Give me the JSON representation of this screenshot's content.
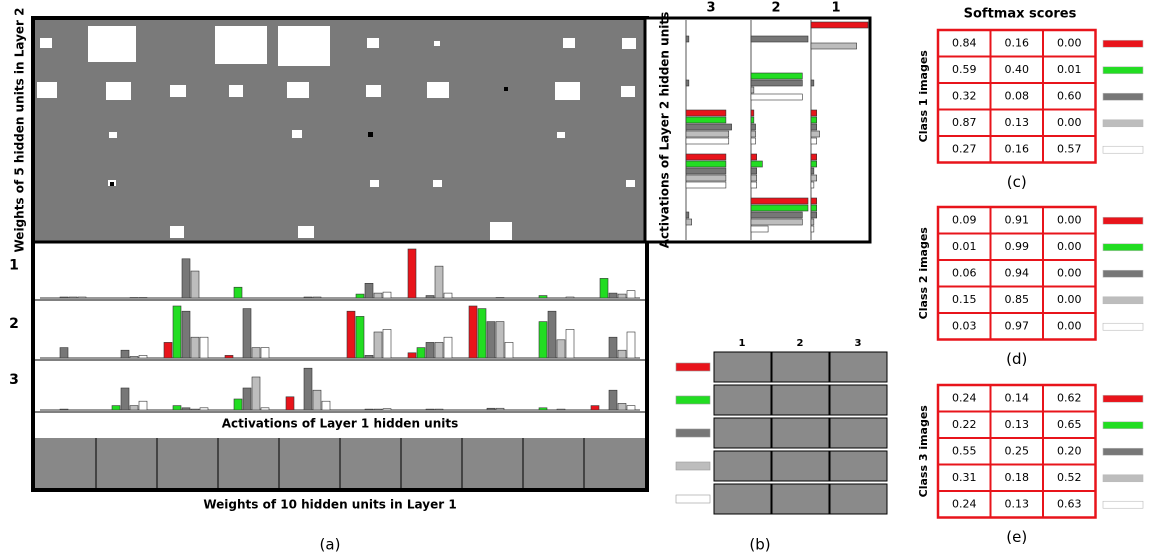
{
  "figure_a": {
    "layer2_weights_label": "Weights of 5 hidden units in Layer 2",
    "row_labels": [
      "1",
      "2",
      "3"
    ],
    "activations_label": "Activations of  Layer 1 hidden  units",
    "layer1_weights_label": "Weights of 10 hidden units in Layer 1",
    "caption": "(a)",
    "layer1_activations": [
      [
        [
          0,
          0,
          0.02,
          0.02,
          0.02
        ],
        [
          0,
          0,
          0,
          0.01,
          0.01
        ],
        [
          0,
          0,
          0.8,
          0.55,
          0
        ],
        [
          0,
          0.22,
          0,
          0,
          0
        ],
        [
          0,
          0,
          0.02,
          0.02,
          0
        ],
        [
          0,
          0.08,
          0.3,
          0.1,
          0.12
        ],
        [
          1.0,
          0,
          0.05,
          0.65,
          0.1
        ],
        [
          0,
          0,
          0,
          0.01,
          0
        ],
        [
          0,
          0.05,
          0,
          0,
          0.02
        ],
        [
          0,
          0.4,
          0.1,
          0.08,
          0.15
        ]
      ],
      [
        [
          0,
          0,
          0.2,
          0,
          0
        ],
        [
          0,
          0,
          0.15,
          0.03,
          0.05
        ],
        [
          0.3,
          1.0,
          0.9,
          0.4,
          0.4
        ],
        [
          0.05,
          0,
          0.95,
          0.2,
          0.2
        ],
        [
          0,
          0,
          0,
          0,
          0
        ],
        [
          0.9,
          0.8,
          0.05,
          0.5,
          0.55
        ],
        [
          0.1,
          0.2,
          0.3,
          0.3,
          0.4
        ],
        [
          1.0,
          0.95,
          0.7,
          0.7,
          0.3
        ],
        [
          0,
          0.7,
          0.9,
          0.35,
          0.55
        ],
        [
          0,
          0,
          0.4,
          0.15,
          0.5
        ]
      ],
      [
        [
          0,
          0,
          0.02,
          0,
          0
        ],
        [
          0,
          0.1,
          0.5,
          0.1,
          0.2
        ],
        [
          0,
          0.1,
          0.05,
          0.02,
          0.05
        ],
        [
          0,
          0.25,
          0.5,
          0.75,
          0.05
        ],
        [
          0.3,
          0,
          0.95,
          0.45,
          0.2
        ],
        [
          0,
          0,
          0.02,
          0.02,
          0.03
        ],
        [
          0,
          0,
          0.02,
          0.02,
          0
        ],
        [
          0,
          0,
          0.04,
          0.04,
          0
        ],
        [
          0,
          0.05,
          0,
          0.02,
          0
        ],
        [
          0.1,
          0,
          0.45,
          0.15,
          0.1
        ]
      ]
    ]
  },
  "layer2": {
    "column_headers": [
      "3",
      "2",
      "1"
    ],
    "axis_label": "Activations of  Layer 2 hidden  units",
    "activations": [
      [
        [
          0,
          0,
          0.05,
          0,
          0
        ],
        [
          0,
          0,
          0.05,
          0,
          0
        ],
        [
          0.7,
          0.7,
          0.8,
          0.75,
          0.75
        ],
        [
          0.7,
          0.7,
          0.7,
          0.7,
          0.7
        ],
        [
          0,
          0,
          0.05,
          0.1,
          0
        ]
      ],
      [
        [
          0,
          0,
          1.0,
          0,
          0
        ],
        [
          0,
          0.9,
          0.9,
          0.05,
          0.9
        ],
        [
          0.05,
          0.05,
          0.08,
          0.08,
          0.08
        ],
        [
          0.1,
          0.2,
          0.1,
          0.1,
          0.1
        ],
        [
          1.0,
          1.0,
          0.9,
          0.9,
          0.3
        ]
      ],
      [
        [
          1.0,
          0,
          0,
          0.8,
          0
        ],
        [
          0,
          0,
          0.05,
          0,
          0
        ],
        [
          0.1,
          0.1,
          0.1,
          0.15,
          0.1
        ],
        [
          0.1,
          0.1,
          0.05,
          0.1,
          0.05
        ],
        [
          0.1,
          0.1,
          0.1,
          0.05,
          0.05
        ]
      ]
    ]
  },
  "figure_b": {
    "column_headers": [
      "1",
      "2",
      "3"
    ],
    "caption": "(b)"
  },
  "legend_colors": [
    "#e8141b",
    "#22dd22",
    "#777777",
    "#bdbdbd",
    "#ffffff"
  ],
  "softmax": {
    "title": "Softmax scores",
    "tables": [
      {
        "row_label": "Class 1 images",
        "caption": "(c)",
        "rows": [
          [
            "0.84",
            "0.16",
            "0.00"
          ],
          [
            "0.59",
            "0.40",
            "0.01"
          ],
          [
            "0.32",
            "0.08",
            "0.60"
          ],
          [
            "0.87",
            "0.13",
            "0.00"
          ],
          [
            "0.27",
            "0.16",
            "0.57"
          ]
        ]
      },
      {
        "row_label": "Class  2 images",
        "caption": "(d)",
        "rows": [
          [
            "0.09",
            "0.91",
            "0.00"
          ],
          [
            "0.01",
            "0.99",
            "0.00"
          ],
          [
            "0.06",
            "0.94",
            "0.00"
          ],
          [
            "0.15",
            "0.85",
            "0.00"
          ],
          [
            "0.03",
            "0.97",
            "0.00"
          ]
        ]
      },
      {
        "row_label": "Class  3 images",
        "caption": "(e)",
        "rows": [
          [
            "0.24",
            "0.14",
            "0.62"
          ],
          [
            "0.22",
            "0.13",
            "0.65"
          ],
          [
            "0.55",
            "0.25",
            "0.20"
          ],
          [
            "0.31",
            "0.18",
            "0.52"
          ],
          [
            "0.24",
            "0.13",
            "0.63"
          ]
        ]
      }
    ]
  }
}
